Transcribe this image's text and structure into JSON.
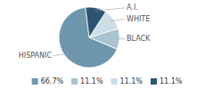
{
  "chart_data": {
    "type": "pie",
    "categories": [
      "HISPANIC",
      "BLACK",
      "WHITE",
      "A.I."
    ],
    "values": [
      66.7,
      11.1,
      11.1,
      11.1
    ],
    "value_labels": [
      "66.7%",
      "11.1%",
      "11.1%",
      "11.1%"
    ],
    "colors": [
      "#6e97ad",
      "#a8c4d0",
      "#ccdde6",
      "#2b5470"
    ],
    "legend": "bottom"
  }
}
